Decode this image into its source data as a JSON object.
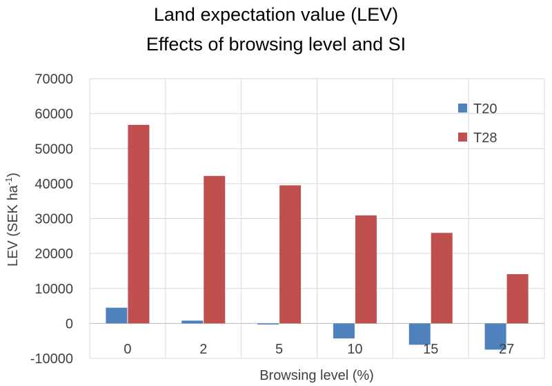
{
  "chart_data": {
    "type": "bar",
    "title_lines": [
      "Land expectation value (LEV)",
      "Effects of browsing level and SI"
    ],
    "xlabel": "Browsing level (%)",
    "ylabel_main": "LEV (SEK ha",
    "ylabel_sup": "-1",
    "ylabel_end": ")",
    "categories": [
      "0",
      "2",
      "5",
      "10",
      "15",
      "27"
    ],
    "ylim": [
      -10000,
      70000
    ],
    "yticks": [
      -10000,
      0,
      10000,
      20000,
      30000,
      40000,
      50000,
      60000,
      70000
    ],
    "ytick_labels": [
      "-10000",
      "0",
      "10000",
      "20000",
      "30000",
      "40000",
      "50000",
      "60000",
      "70000"
    ],
    "grid": true,
    "legend_position": "top-right",
    "series": [
      {
        "name": "T20",
        "color": "#4f81bd",
        "values": [
          4500,
          800,
          -300,
          -4300,
          -6100,
          -7500
        ]
      },
      {
        "name": "T28",
        "color": "#c0504d",
        "values": [
          56800,
          42200,
          39500,
          30900,
          25900,
          14100
        ]
      }
    ]
  }
}
